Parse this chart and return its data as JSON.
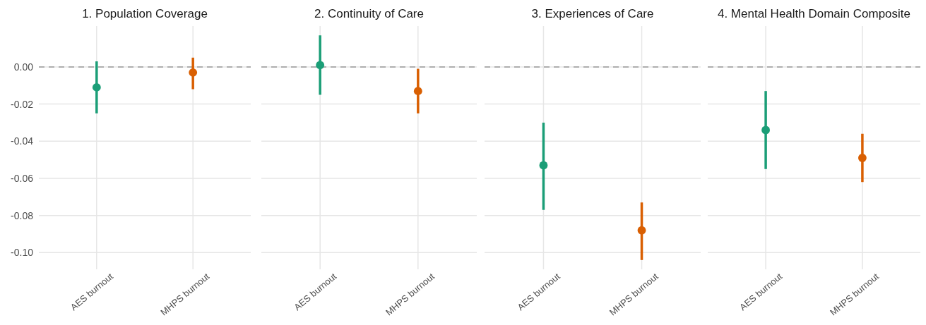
{
  "chart_data": [
    {
      "type": "scatter",
      "title": "1. Population Coverage",
      "categories": [
        "AES burnout",
        "MHPS burnout"
      ],
      "values": [
        -0.011,
        -0.003
      ],
      "errors": [
        [
          -0.025,
          0.003
        ],
        [
          -0.012,
          0.005
        ]
      ],
      "colors": [
        "#1b9e77",
        "#d95f02"
      ],
      "marker": "circle",
      "ylim": [
        -0.109,
        0.022
      ],
      "yticks": [
        {
          "value": 0,
          "label": "0.00"
        },
        {
          "value": -0.02,
          "label": "-0.02"
        },
        {
          "value": -0.04,
          "label": "-0.04"
        },
        {
          "value": -0.06,
          "label": "-0.06"
        },
        {
          "value": -0.08,
          "label": "-0.08"
        },
        {
          "value": -0.1,
          "label": "-0.10"
        }
      ],
      "grid": true,
      "ref_lines": [
        {
          "axis": "y",
          "value": 0,
          "color": "#999999",
          "line_style": "dashed"
        }
      ]
    },
    {
      "type": "scatter",
      "title": "2. Continuity of Care",
      "categories": [
        "AES burnout",
        "MHPS burnout"
      ],
      "values": [
        0.001,
        -0.013
      ],
      "errors": [
        [
          -0.015,
          0.017
        ],
        [
          -0.025,
          -0.001
        ]
      ],
      "colors": [
        "#1b9e77",
        "#d95f02"
      ],
      "marker": "circle",
      "ylim": [
        -0.109,
        0.022
      ],
      "yticks": [
        0,
        -0.02,
        -0.04,
        -0.06,
        -0.08,
        -0.1
      ],
      "tick_labels": "x",
      "grid": true,
      "ref_lines": [
        {
          "axis": "y",
          "value": 0,
          "color": "#999999",
          "line_style": "dashed"
        }
      ]
    },
    {
      "type": "scatter",
      "title": "3. Experiences of Care",
      "categories": [
        "AES burnout",
        "MHPS burnout"
      ],
      "values": [
        -0.053,
        -0.088
      ],
      "errors": [
        [
          -0.077,
          -0.03
        ],
        [
          -0.104,
          -0.073
        ]
      ],
      "colors": [
        "#1b9e77",
        "#d95f02"
      ],
      "marker": "circle",
      "ylim": [
        -0.109,
        0.022
      ],
      "yticks": [
        0,
        -0.02,
        -0.04,
        -0.06,
        -0.08,
        -0.1
      ],
      "tick_labels": "x",
      "grid": true,
      "ref_lines": [
        {
          "axis": "y",
          "value": 0,
          "color": "#999999",
          "line_style": "dashed"
        }
      ]
    },
    {
      "type": "scatter",
      "title": "4. Mental Health Domain Composite",
      "categories": [
        "AES burnout",
        "MHPS burnout"
      ],
      "values": [
        -0.034,
        -0.049
      ],
      "errors": [
        [
          -0.055,
          -0.013
        ],
        [
          -0.062,
          -0.036
        ]
      ],
      "colors": [
        "#1b9e77",
        "#d95f02"
      ],
      "marker": "circle",
      "ylim": [
        -0.109,
        0.022
      ],
      "yticks": [
        0,
        -0.02,
        -0.04,
        -0.06,
        -0.08,
        -0.1
      ],
      "tick_labels": "x",
      "grid": true,
      "ref_lines": [
        {
          "axis": "y",
          "value": 0,
          "color": "#999999",
          "line_style": "dashed"
        }
      ]
    }
  ]
}
